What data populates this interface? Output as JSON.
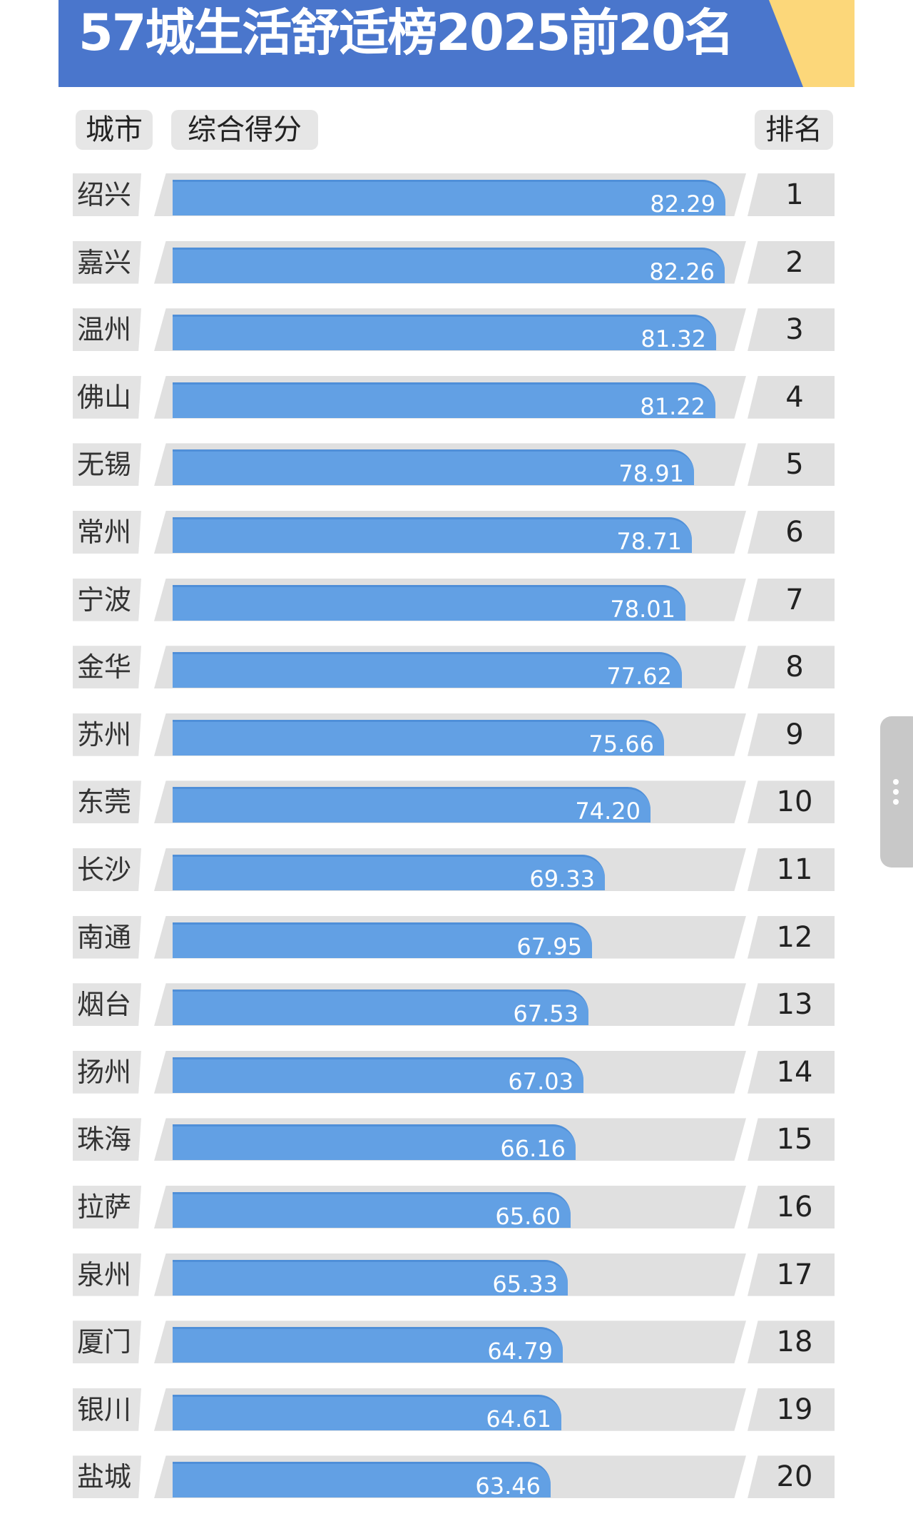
{
  "title": "57城生活舒适榜2025前20名",
  "headers": {
    "city": "城市",
    "score": "综合得分",
    "rank": "排名"
  },
  "colors": {
    "title_bg": "#4a76cc",
    "title_accent": "#fcd77a",
    "bar": "#62a0e4",
    "track": "#e0e0e0"
  },
  "rows": [
    {
      "city": "绍兴",
      "score": "82.29",
      "rank": "1"
    },
    {
      "city": "嘉兴",
      "score": "82.26",
      "rank": "2"
    },
    {
      "city": "温州",
      "score": "81.32",
      "rank": "3"
    },
    {
      "city": "佛山",
      "score": "81.22",
      "rank": "4"
    },
    {
      "city": "无锡",
      "score": "78.91",
      "rank": "5"
    },
    {
      "city": "常州",
      "score": "78.71",
      "rank": "6"
    },
    {
      "city": "宁波",
      "score": "78.01",
      "rank": "7"
    },
    {
      "city": "金华",
      "score": "77.62",
      "rank": "8"
    },
    {
      "city": "苏州",
      "score": "75.66",
      "rank": "9"
    },
    {
      "city": "东莞",
      "score": "74.20",
      "rank": "10"
    },
    {
      "city": "长沙",
      "score": "69.33",
      "rank": "11"
    },
    {
      "city": "南通",
      "score": "67.95",
      "rank": "12"
    },
    {
      "city": "烟台",
      "score": "67.53",
      "rank": "13"
    },
    {
      "city": "扬州",
      "score": "67.03",
      "rank": "14"
    },
    {
      "city": "珠海",
      "score": "66.16",
      "rank": "15"
    },
    {
      "city": "拉萨",
      "score": "65.60",
      "rank": "16"
    },
    {
      "city": "泉州",
      "score": "65.33",
      "rank": "17"
    },
    {
      "city": "厦门",
      "score": "64.79",
      "rank": "18"
    },
    {
      "city": "银川",
      "score": "64.61",
      "rank": "19"
    },
    {
      "city": "盐城",
      "score": "63.46",
      "rank": "20"
    }
  ],
  "chart_data": {
    "type": "bar",
    "orientation": "horizontal",
    "title": "57城生活舒适榜2025前20名",
    "xlabel": "综合得分",
    "ylabel": "城市",
    "categories": [
      "绍兴",
      "嘉兴",
      "温州",
      "佛山",
      "无锡",
      "常州",
      "宁波",
      "金华",
      "苏州",
      "东莞",
      "长沙",
      "南通",
      "烟台",
      "扬州",
      "珠海",
      "拉萨",
      "泉州",
      "厦门",
      "银川",
      "盐城"
    ],
    "values": [
      82.29,
      82.26,
      81.32,
      81.22,
      78.91,
      78.71,
      78.01,
      77.62,
      75.66,
      74.2,
      69.33,
      67.95,
      67.53,
      67.03,
      66.16,
      65.6,
      65.33,
      64.79,
      64.61,
      63.46
    ],
    "ranks": [
      1,
      2,
      3,
      4,
      5,
      6,
      7,
      8,
      9,
      10,
      11,
      12,
      13,
      14,
      15,
      16,
      17,
      18,
      19,
      20
    ],
    "data_labels": true,
    "grid": false,
    "legend": null
  }
}
